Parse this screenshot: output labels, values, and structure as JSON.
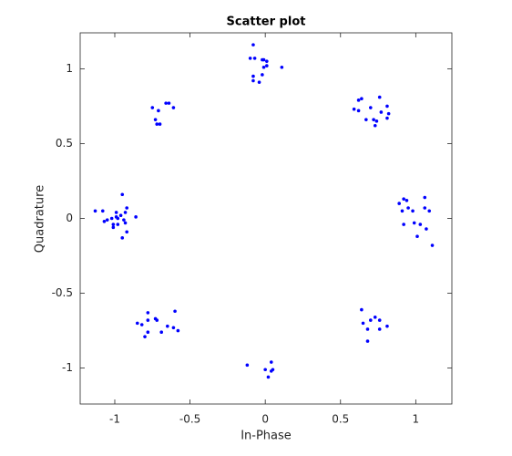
{
  "chart_data": {
    "type": "scatter",
    "title": "Scatter plot",
    "x_label": "In-Phase",
    "y_label": "Quadrature",
    "color": "#0000ff",
    "x": [
      -0.08,
      -0.1,
      -0.07,
      -0.02,
      -0.01,
      0.01,
      0.01,
      -0.01,
      0.11,
      -0.02,
      -0.08,
      -0.08,
      -0.04,
      0.62,
      0.64,
      0.76,
      0.59,
      0.62,
      0.7,
      0.77,
      0.81,
      0.67,
      0.72,
      0.74,
      0.73,
      0.81,
      0.82,
      -0.75,
      -0.71,
      -0.66,
      -0.64,
      -0.61,
      -0.73,
      -0.72,
      -0.7,
      -1.13,
      -1.08,
      -0.95,
      -0.92,
      -0.99,
      -0.99,
      -0.96,
      -0.93,
      -1.02,
      -1.05,
      -1.07,
      -0.86,
      -1.01,
      -0.98,
      -0.93,
      -1.01,
      -0.92,
      -0.95,
      -0.98,
      -0.94,
      0.92,
      0.94,
      1.06,
      0.89,
      0.91,
      0.95,
      0.98,
      1.06,
      1.09,
      0.92,
      0.99,
      1.03,
      1.07,
      1.01,
      1.11,
      0.64,
      0.65,
      0.7,
      0.73,
      0.76,
      0.81,
      0.68,
      0.76,
      0.68,
      -0.78,
      -0.6,
      -0.85,
      -0.82,
      -0.78,
      -0.73,
      -0.72,
      -0.65,
      -0.61,
      -0.58,
      -0.78,
      -0.8,
      -0.69,
      -0.12,
      0.04,
      0.0,
      0.05,
      0.04,
      0.02
    ],
    "y": [
      1.16,
      1.07,
      1.07,
      1.06,
      1.06,
      1.05,
      1.02,
      1.01,
      1.01,
      0.96,
      0.95,
      0.92,
      0.91,
      0.79,
      0.8,
      0.81,
      0.73,
      0.72,
      0.74,
      0.71,
      0.75,
      0.66,
      0.66,
      0.65,
      0.62,
      0.67,
      0.7,
      0.74,
      0.72,
      0.77,
      0.77,
      0.74,
      0.66,
      0.63,
      0.63,
      0.05,
      0.05,
      0.16,
      0.07,
      0.04,
      0.01,
      0.02,
      0.04,
      0.0,
      -0.01,
      -0.02,
      0.01,
      -0.04,
      -0.04,
      -0.03,
      -0.06,
      -0.09,
      -0.13,
      0.0,
      -0.01,
      0.13,
      0.12,
      0.14,
      0.1,
      0.05,
      0.07,
      0.05,
      0.07,
      0.05,
      -0.04,
      -0.03,
      -0.04,
      -0.07,
      -0.12,
      -0.18,
      -0.61,
      -0.7,
      -0.68,
      -0.66,
      -0.68,
      -0.72,
      -0.74,
      -0.74,
      -0.82,
      -0.63,
      -0.62,
      -0.7,
      -0.71,
      -0.68,
      -0.67,
      -0.68,
      -0.72,
      -0.73,
      -0.75,
      -0.76,
      -0.79,
      -0.76,
      -0.98,
      -0.96,
      -1.01,
      -1.01,
      -1.02,
      -1.06
    ],
    "xlim": [
      -1.23,
      1.24
    ],
    "ylim": [
      -1.24,
      1.24
    ],
    "xticks": [
      -1,
      -0.5,
      0,
      0.5,
      1
    ],
    "yticks": [
      -1,
      -0.5,
      0,
      0.5,
      1
    ]
  }
}
